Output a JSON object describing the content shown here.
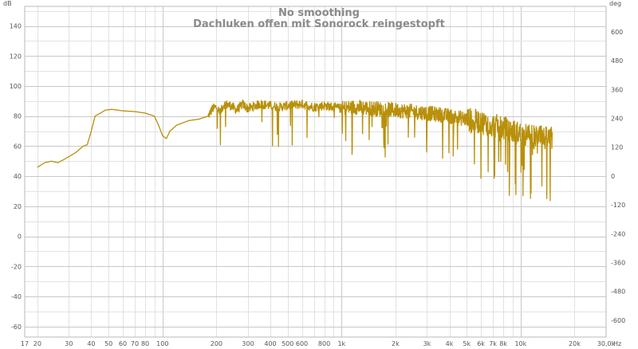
{
  "chart_data": {
    "type": "line",
    "title": "No smoothing",
    "subtitle": "Dachluken offen mit Sonorock reingestopft",
    "left_unit": "dB",
    "right_unit": "deg",
    "x_unit": "Hz",
    "x_scale": "log",
    "xlim": [
      17,
      30000
    ],
    "ylim": [
      -67,
      153
    ],
    "ylim_right": [
      -670,
      706
    ],
    "grid": true,
    "line_color": "#b8900a",
    "x_tick_labels": [
      "17",
      "20",
      "30",
      "40",
      "50",
      "60",
      "70",
      "80",
      "100",
      "200",
      "300",
      "400",
      "500",
      "600",
      "800",
      "1k",
      "2k",
      "3k",
      "4k",
      "5k",
      "6k",
      "7k",
      "8k",
      "10k",
      "20k",
      "30,0k"
    ],
    "y_tick_labels": [
      "140",
      "120",
      "100",
      "80",
      "60",
      "40",
      "20",
      "0",
      "-20",
      "-40",
      "-60"
    ],
    "y_right_tick_labels": [
      "600",
      "480",
      "360",
      "240",
      "120",
      "0",
      "-120",
      "-240",
      "-360",
      "-480",
      "-600"
    ],
    "series": [
      {
        "x": [
          20,
          22,
          24,
          26,
          28,
          30,
          33,
          36,
          38,
          40,
          42,
          45,
          48,
          52,
          56,
          60,
          70,
          80,
          90,
          95,
          100,
          105,
          110,
          120,
          140,
          160,
          180,
          190,
          200,
          210,
          220,
          240,
          260,
          280,
          300,
          350,
          400,
          450,
          500,
          600,
          700,
          800,
          900,
          1000,
          1200,
          1500,
          2000,
          2500,
          3000,
          3500,
          4000,
          5000,
          6000,
          7000,
          8000,
          9000,
          10000,
          12000,
          14000,
          15000
        ],
        "y": [
          46,
          49,
          50,
          49,
          51,
          53,
          56,
          60,
          61,
          70,
          80,
          82,
          84,
          84.5,
          84,
          83.5,
          83,
          82,
          80,
          74,
          67,
          65,
          70,
          74,
          77,
          78,
          80,
          85,
          86,
          82,
          88,
          87,
          84,
          88,
          85,
          88,
          87,
          86,
          87,
          88,
          86,
          87,
          86,
          85,
          86,
          85,
          84,
          83,
          82,
          81,
          80,
          78,
          76,
          74,
          72,
          70,
          68,
          66,
          65,
          65
        ]
      }
    ]
  }
}
